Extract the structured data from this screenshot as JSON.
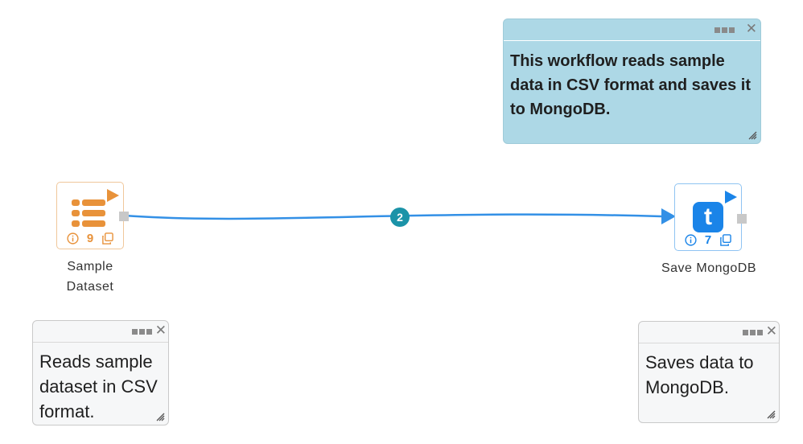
{
  "canvas": {
    "background": "#ffffff"
  },
  "notes": {
    "workflow_description": "This workflow reads sample data in CSV format and saves it to MongoDB.",
    "sample_dataset_note": "Reads sample dataset in CSV format.",
    "save_mongodb_note": "Saves data to MongoDB."
  },
  "nodes": {
    "sample_dataset": {
      "label_line1": "Sample",
      "label_line2": "Dataset",
      "count": "9",
      "icon": "table-rows-icon",
      "accent": "#e8923a"
    },
    "save_mongodb": {
      "label": "Save MongoDB",
      "count": "7",
      "icon": "letter-t-icon",
      "accent": "#1a84e8"
    }
  },
  "edge": {
    "count": "2",
    "color": "#3390e6"
  },
  "colors": {
    "note_blue": "#add8e6",
    "note_gray": "#f6f7f8",
    "badge": "#1b93a8"
  }
}
